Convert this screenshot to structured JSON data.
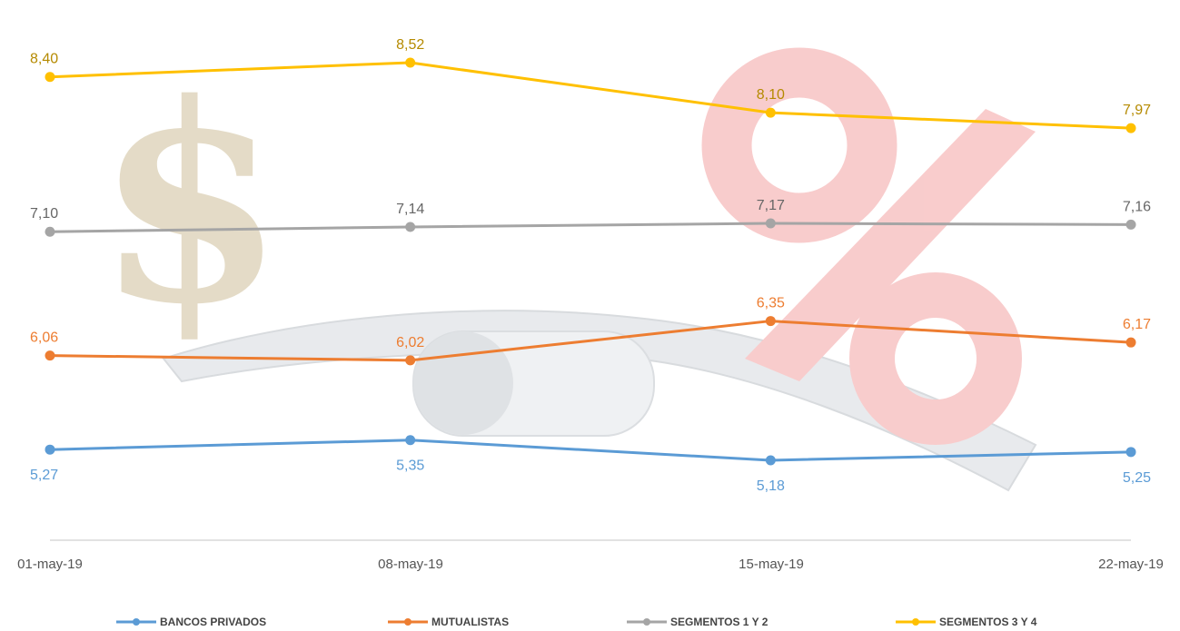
{
  "chart_data": {
    "type": "line",
    "categories": [
      "01-may-19",
      "08-may-19",
      "15-may-19",
      "22-may-19"
    ],
    "ylim": [
      4.5,
      9.0
    ],
    "grid": false,
    "legend_position": "bottom",
    "series": [
      {
        "name": "BANCOS PRIVADOS",
        "color": "#5b9bd5",
        "values": [
          5.27,
          5.35,
          5.18,
          5.25
        ],
        "labels": [
          "5,27",
          "5,35",
          "5,18",
          "5,25"
        ],
        "label_position": "below"
      },
      {
        "name": "MUTUALISTAS",
        "color": "#ed7d31",
        "values": [
          6.06,
          6.02,
          6.35,
          6.17
        ],
        "labels": [
          "6,06",
          "6,02",
          "6,35",
          "6,17"
        ],
        "label_position": "above"
      },
      {
        "name": "SEGMENTOS 1 Y 2",
        "color": "#a5a5a5",
        "values": [
          7.1,
          7.14,
          7.17,
          7.16
        ],
        "labels": [
          "7,10",
          "7,14",
          "7,17",
          "7,16"
        ],
        "label_position": "above"
      },
      {
        "name": "SEGMENTOS 3 Y 4",
        "color": "#ffc000",
        "values": [
          8.4,
          8.52,
          8.1,
          7.97
        ],
        "labels": [
          "8,40",
          "8,52",
          "8,10",
          "7,97"
        ],
        "label_position": "above"
      }
    ]
  },
  "background_art": {
    "dollar_sign_color": "#c9b98f",
    "percent_sign_color": "#f4a3a3",
    "seesaw_color": "#cfd3d8"
  }
}
